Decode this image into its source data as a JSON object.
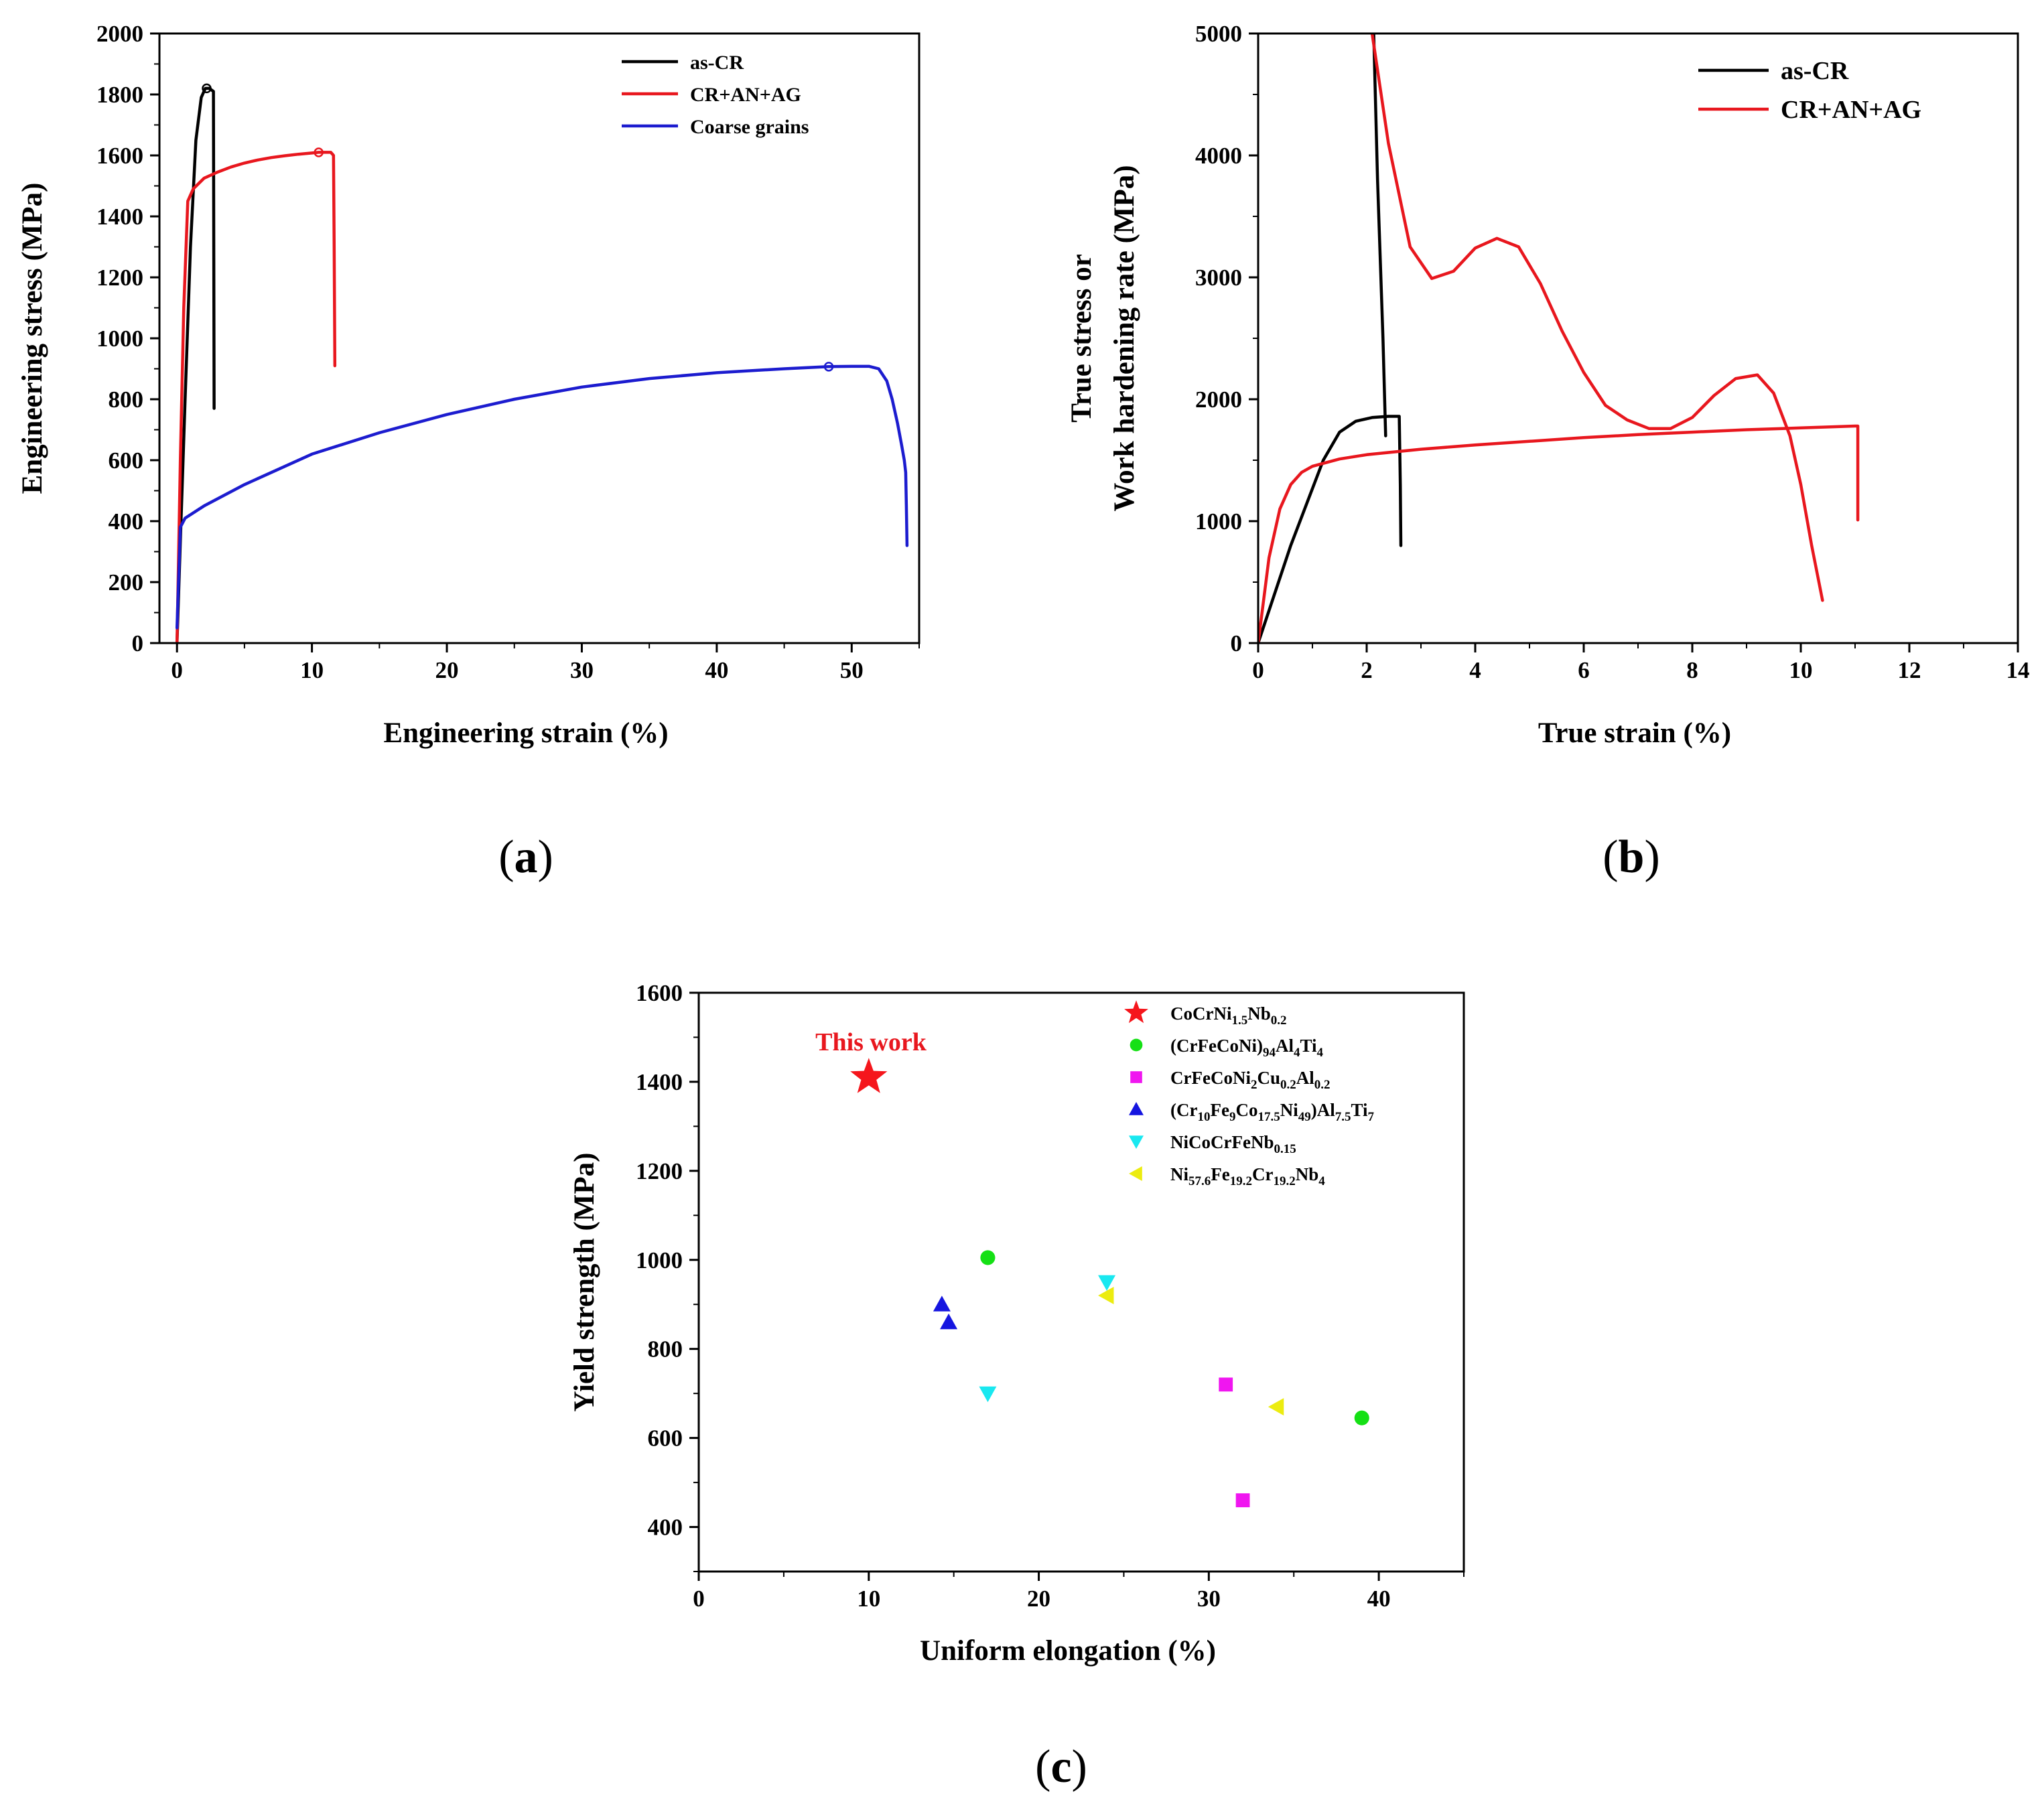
{
  "chart_data": [
    {
      "panel": "a",
      "type": "line",
      "panel_label_open": "(",
      "panel_label_letter": "a",
      "panel_label_close": ")",
      "xlabel": "Engineering strain (%)",
      "ylabel": "Engineering stress (MPa)",
      "xlim": [
        -1.3,
        55
      ],
      "ylim": [
        0,
        2000
      ],
      "xticks": [
        0,
        10,
        20,
        30,
        40,
        50
      ],
      "yticks": [
        0,
        200,
        400,
        600,
        800,
        1000,
        1200,
        1400,
        1600,
        1800,
        2000
      ],
      "series": [
        {
          "name": "as-CR",
          "color": "#000000",
          "x": [
            0.0,
            0.3,
            0.6,
            1.0,
            1.4,
            1.8,
            2.1,
            2.4,
            2.7,
            2.75
          ],
          "y": [
            0,
            400,
            800,
            1300,
            1650,
            1790,
            1820,
            1820,
            1810,
            770
          ],
          "marker": {
            "x": 2.2,
            "y": 1820
          }
        },
        {
          "name": "CR+AN+AG",
          "color": "#e8171e",
          "x": [
            0.0,
            0.25,
            0.5,
            0.8,
            1.2,
            2,
            3,
            4,
            5,
            6,
            7,
            8,
            9,
            10,
            10.5,
            11.4,
            11.6,
            11.65,
            11.7
          ],
          "y": [
            0,
            600,
            1100,
            1450,
            1490,
            1525,
            1545,
            1562,
            1575,
            1585,
            1593,
            1599,
            1604,
            1608,
            1610,
            1610,
            1600,
            1300,
            910
          ],
          "marker": {
            "x": 10.5,
            "y": 1610
          }
        },
        {
          "name": "Coarse grains",
          "color": "#1c1ccf",
          "x": [
            0.0,
            0.25,
            0.6,
            2,
            5,
            10,
            15,
            20,
            25,
            30,
            35,
            40,
            45,
            48.3,
            50,
            51.3,
            52,
            52.6,
            53,
            53.4,
            53.7,
            53.9,
            54.0,
            54.05,
            54.1
          ],
          "y": [
            50,
            380,
            410,
            450,
            520,
            620,
            690,
            750,
            800,
            840,
            868,
            887,
            900,
            907,
            908,
            908,
            900,
            860,
            800,
            720,
            650,
            600,
            560,
            450,
            320
          ],
          "marker": {
            "x": 48.3,
            "y": 907
          }
        }
      ]
    },
    {
      "panel": "b",
      "type": "line",
      "panel_label_open": "(",
      "panel_label_letter": "b",
      "panel_label_close": ")",
      "xlabel": "True strain (%)",
      "ylabel_line1": "True stress or",
      "ylabel_line2": "Work hardening rate (MPa)",
      "xlim": [
        0,
        14
      ],
      "ylim": [
        0,
        5000
      ],
      "xticks": [
        0,
        2,
        4,
        6,
        8,
        10,
        12,
        14
      ],
      "yticks": [
        0,
        1000,
        2000,
        3000,
        4000,
        5000
      ],
      "series": [
        {
          "name": "as-CR",
          "color": "#000000",
          "role": "true stress",
          "x": [
            0.0,
            0.3,
            0.6,
            0.9,
            1.2,
            1.5,
            1.8,
            2.1,
            2.4,
            2.6,
            2.62,
            2.63
          ],
          "y": [
            0,
            400,
            800,
            1150,
            1500,
            1730,
            1820,
            1850,
            1860,
            1860,
            1300,
            800
          ]
        },
        {
          "name": "as-CR",
          "color": "#000000",
          "role": "work hardening rate",
          "x": [
            2.13,
            2.2,
            2.3,
            2.35
          ],
          "y": [
            5000,
            3800,
            2500,
            1700
          ]
        },
        {
          "name": "CR+AN+AG",
          "color": "#e8171e",
          "role": "true stress",
          "x": [
            0.0,
            0.2,
            0.4,
            0.6,
            0.8,
            1.0,
            1.5,
            2,
            3,
            4,
            5,
            6,
            7,
            8,
            9,
            10,
            11,
            11.05,
            11.05
          ],
          "y": [
            0,
            700,
            1100,
            1300,
            1400,
            1450,
            1510,
            1545,
            1590,
            1625,
            1655,
            1685,
            1710,
            1730,
            1750,
            1765,
            1780,
            1780,
            1010
          ]
        },
        {
          "name": "CR+AN+AG",
          "color": "#e8171e",
          "role": "work hardening rate",
          "x": [
            2.1,
            2.4,
            2.8,
            3.2,
            3.6,
            4.0,
            4.4,
            4.8,
            5.2,
            5.6,
            6.0,
            6.4,
            6.8,
            7.2,
            7.6,
            8.0,
            8.4,
            8.8,
            9.2,
            9.5,
            9.8,
            10.0,
            10.2,
            10.4
          ],
          "y": [
            5000,
            4100,
            3250,
            2990,
            3050,
            3240,
            3320,
            3250,
            2950,
            2560,
            2220,
            1950,
            1830,
            1760,
            1760,
            1850,
            2030,
            2170,
            2200,
            2050,
            1700,
            1300,
            800,
            350
          ]
        }
      ]
    },
    {
      "panel": "c",
      "type": "scatter",
      "panel_label_open": "(",
      "panel_label_letter": "c",
      "panel_label_close": ")",
      "xlabel": "Uniform elongation (%)",
      "ylabel": "Yield strength (MPa)",
      "xlim": [
        0,
        45
      ],
      "ylim": [
        300,
        1600
      ],
      "xticks": [
        0,
        10,
        20,
        30,
        40
      ],
      "yticks": [
        400,
        600,
        800,
        1000,
        1200,
        1400,
        1600
      ],
      "annotation": "This work",
      "annotation_color": "#e8171e",
      "series": [
        {
          "name_parts": [
            [
              "CoCrNi",
              ""
            ],
            [
              "1.5",
              "sub"
            ],
            [
              "Nb",
              ""
            ],
            [
              "0.2",
              "sub"
            ]
          ],
          "marker": "star",
          "color": "#f5161c",
          "points": [
            [
              10,
              1410
            ]
          ]
        },
        {
          "name_parts": [
            [
              "(CrFeCoNi)",
              ""
            ],
            [
              "94",
              "sub"
            ],
            [
              "Al",
              ""
            ],
            [
              "4",
              "sub"
            ],
            [
              "Ti",
              ""
            ],
            [
              "4",
              "sub"
            ]
          ],
          "marker": "circle",
          "color": "#15e015",
          "points": [
            [
              17,
              1005
            ],
            [
              39,
              645
            ]
          ]
        },
        {
          "name_parts": [
            [
              "CrFeCoNi",
              ""
            ],
            [
              "2",
              "sub"
            ],
            [
              "Cu",
              ""
            ],
            [
              "0.2",
              "sub"
            ],
            [
              "Al",
              ""
            ],
            [
              "0.2",
              "sub"
            ]
          ],
          "marker": "square",
          "color": "#f016f0",
          "points": [
            [
              31,
              720
            ],
            [
              32,
              460
            ]
          ]
        },
        {
          "name_parts": [
            [
              "(Cr",
              ""
            ],
            [
              "10",
              "sub"
            ],
            [
              "Fe",
              ""
            ],
            [
              "9",
              "sub"
            ],
            [
              "Co",
              ""
            ],
            [
              "17.5",
              "sub"
            ],
            [
              "Ni",
              ""
            ],
            [
              "49",
              "sub"
            ],
            [
              ")Al",
              ""
            ],
            [
              "7.5",
              "sub"
            ],
            [
              "Ti",
              ""
            ],
            [
              "7",
              "sub"
            ]
          ],
          "marker": "triangle-up",
          "color": "#1515e0",
          "points": [
            [
              14.3,
              900
            ],
            [
              14.7,
              860
            ]
          ]
        },
        {
          "name_parts": [
            [
              "NiCoCrFeNb",
              ""
            ],
            [
              "0.15",
              "sub"
            ]
          ],
          "marker": "triangle-down",
          "color": "#19e8f0",
          "points": [
            [
              17,
              700
            ],
            [
              24,
              950
            ]
          ]
        },
        {
          "name_parts": [
            [
              "Ni",
              ""
            ],
            [
              "57.6",
              "sub"
            ],
            [
              "Fe",
              ""
            ],
            [
              "19.2",
              "sub"
            ],
            [
              "Cr",
              ""
            ],
            [
              "19.2",
              "sub"
            ],
            [
              "Nb",
              ""
            ],
            [
              "4",
              "sub"
            ]
          ],
          "marker": "triangle-left",
          "color": "#ecec10",
          "points": [
            [
              24,
              920
            ],
            [
              34,
              670
            ]
          ]
        }
      ]
    }
  ]
}
